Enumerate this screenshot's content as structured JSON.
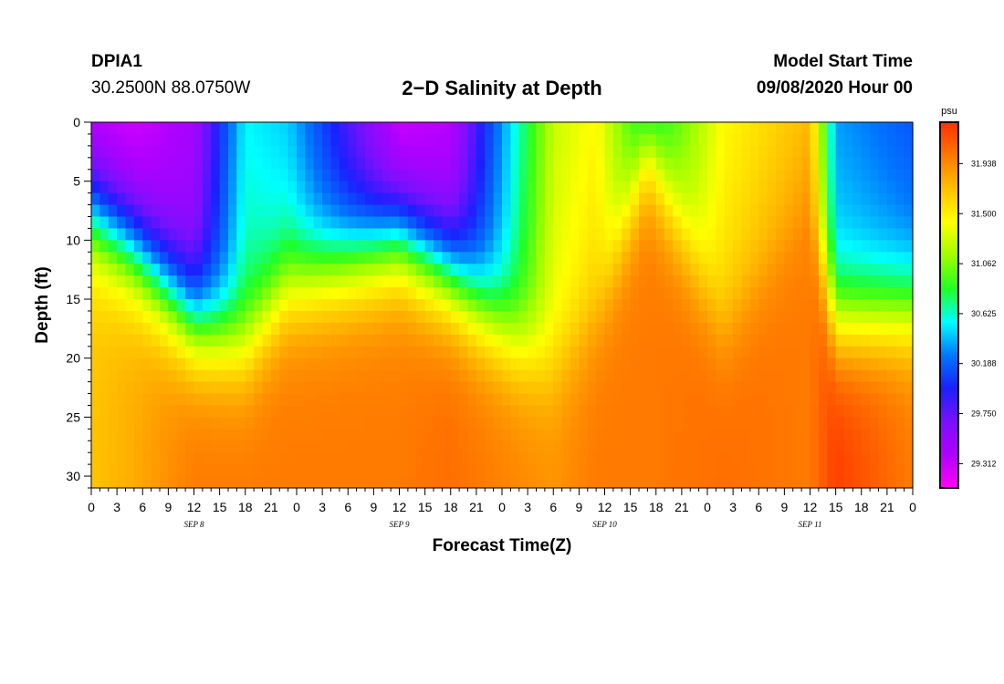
{
  "header": {
    "station": "DPIA1",
    "coordinates": "30.2500N 88.0750W",
    "title": "2−D Salinity at Depth",
    "model_start_label": "Model Start Time",
    "model_start_value": "09/08/2020 Hour 00"
  },
  "chart_data": {
    "type": "heatmap",
    "title": "2−D Salinity at Depth",
    "xlabel": "Forecast Time(Z)",
    "ylabel": "Depth (ft)",
    "x_unit": "hours since model start",
    "xlim": [
      0,
      96
    ],
    "ylim": [
      0,
      31
    ],
    "y_inverted": true,
    "x_tick_labels": [
      "0",
      "3",
      "6",
      "9",
      "12",
      "15",
      "18",
      "21",
      "0",
      "3",
      "6",
      "9",
      "12",
      "15",
      "18",
      "21",
      "0",
      "3",
      "6",
      "9",
      "12",
      "15",
      "18",
      "21",
      "0",
      "3",
      "6",
      "9",
      "12",
      "15",
      "18",
      "21",
      "0"
    ],
    "x_date_labels": [
      {
        "label": "SEP 8",
        "hour": 12
      },
      {
        "label": "SEP 9",
        "hour": 36
      },
      {
        "label": "SEP 10",
        "hour": 60
      },
      {
        "label": "SEP 11",
        "hour": 84
      }
    ],
    "y_tick_labels": [
      "0",
      "5",
      "10",
      "15",
      "20",
      "25",
      "30"
    ],
    "y_ticks": [
      0,
      5,
      10,
      15,
      20,
      25,
      30
    ],
    "colorbar": {
      "unit": "psu",
      "range": [
        29.1,
        32.3
      ],
      "tick_values": [
        29.312,
        29.75,
        30.188,
        30.625,
        31.062,
        31.5,
        31.938
      ],
      "tick_labels": [
        "29.312",
        "29.750",
        "30.188",
        "30.625",
        "31.062",
        "31.500",
        "31.938"
      ],
      "colors": [
        "#ff00ff",
        "#b000ff",
        "#7a10ff",
        "#1a20ff",
        "#0078ff",
        "#00ffff",
        "#22ff22",
        "#a0ff00",
        "#ffff00",
        "#ffc000",
        "#ff7800",
        "#ff3000"
      ]
    },
    "salinity_profile": {
      "description_hours": [
        0,
        5,
        12,
        18,
        23,
        36,
        42,
        50,
        54,
        59,
        65,
        74,
        84,
        87,
        96
      ],
      "fresh_layer_bottom_ft": [
        8,
        11,
        17,
        19,
        14,
        10,
        13,
        19,
        21,
        17,
        3,
        18,
        9,
        17,
        16
      ],
      "surface_psu": [
        29.45,
        29.4,
        29.6,
        30.7,
        30.6,
        29.4,
        29.5,
        30.8,
        31.4,
        31.6,
        30.8,
        31.6,
        31.9,
        30.5,
        30.3
      ],
      "bottom_psu": [
        31.7,
        31.8,
        32.0,
        32.0,
        32.0,
        32.0,
        32.05,
        31.95,
        31.9,
        32.0,
        32.0,
        32.05,
        32.0,
        32.25,
        32.0
      ]
    }
  }
}
